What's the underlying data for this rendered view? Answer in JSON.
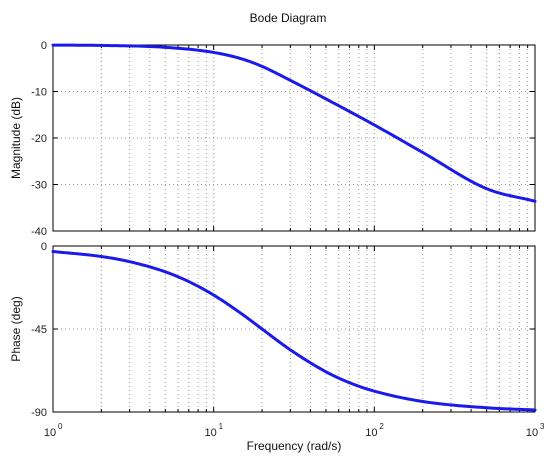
{
  "chart_data": {
    "type": "line",
    "title": "Bode Diagram",
    "xlabel": "Frequency  (rad/s)",
    "xscale": "log",
    "xlim": [
      1,
      1000
    ],
    "x_ticks": [
      {
        "value": 1,
        "base": "10",
        "exp": "0"
      },
      {
        "value": 10,
        "base": "10",
        "exp": "1"
      },
      {
        "value": 100,
        "base": "10",
        "exp": "2"
      },
      {
        "value": 1000,
        "base": "10",
        "exp": "3"
      }
    ],
    "grid": true,
    "line_color": "#1a1aeb",
    "panels": [
      {
        "ylabel": "Magnitude (dB)",
        "ylim": [
          -40,
          0
        ],
        "yticks": [
          0,
          -10,
          -20,
          -30,
          -40
        ],
        "x": [
          1,
          2,
          5,
          10,
          15,
          20,
          30,
          50,
          100,
          200,
          500,
          1000
        ],
        "y": [
          -0.02,
          -0.09,
          -0.5,
          -1.6,
          -3.0,
          -4.6,
          -7.6,
          -11.6,
          -17.2,
          -23.1,
          -30.9,
          -33.6
        ]
      },
      {
        "ylabel": "Phase (deg)",
        "ylim": [
          -90,
          0
        ],
        "yticks": [
          0,
          -45,
          -90
        ],
        "x": [
          1,
          2,
          3,
          5,
          7,
          10,
          15,
          20,
          30,
          50,
          70,
          100,
          200,
          500,
          1000
        ],
        "y": [
          -3.0,
          -5.7,
          -8.5,
          -14.0,
          -19.3,
          -26.6,
          -36.9,
          -45.0,
          -56.3,
          -68.2,
          -74.1,
          -78.7,
          -84.3,
          -87.7,
          -88.9
        ]
      }
    ]
  }
}
